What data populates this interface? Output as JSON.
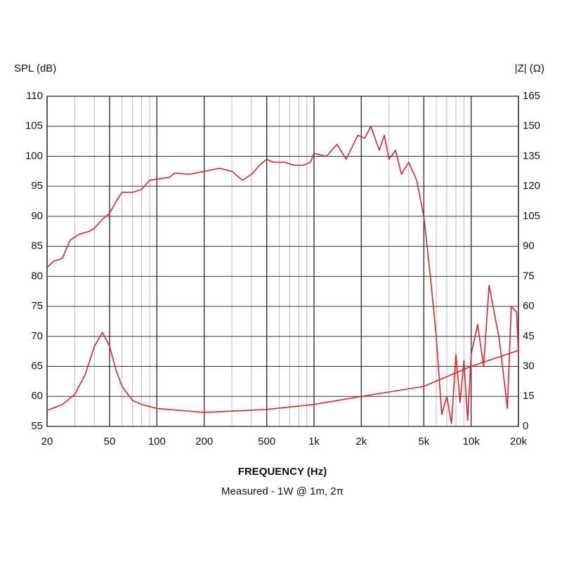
{
  "chart_data": {
    "type": "line",
    "y_label": "SPL (dB)",
    "y2_label": "|Z| (Ω)",
    "x_label": "FREQUENCY (Hz)",
    "subtitle": "Measured - 1W @ 1m, 2π",
    "log_x": true,
    "grid": true,
    "xlim": [
      20,
      20000
    ],
    "xticks": [
      20,
      50,
      100,
      200,
      500,
      {
        "value": 1000,
        "label": "1k"
      },
      {
        "value": 2000,
        "label": "2k"
      },
      {
        "value": 5000,
        "label": "5k"
      },
      {
        "value": 10000,
        "label": "10k"
      },
      {
        "value": 20000,
        "label": "20k"
      }
    ],
    "ylim": [
      55,
      110
    ],
    "yticks": [
      55,
      60,
      65,
      70,
      75,
      80,
      85,
      90,
      95,
      100,
      105,
      110
    ],
    "y2lim": [
      0,
      165
    ],
    "y2ticks": [
      0,
      15,
      30,
      45,
      60,
      75,
      90,
      105,
      120,
      135,
      150,
      165
    ],
    "series": [
      {
        "color": "#e8202a",
        "axis": "y",
        "x": [
          20,
          22,
          25,
          28,
          32,
          37,
          40,
          45,
          50,
          55,
          60,
          70,
          80,
          90,
          100,
          120,
          130,
          160,
          200,
          250,
          300,
          350,
          400,
          450,
          500,
          550,
          650,
          750,
          850,
          950,
          1000,
          1200,
          1400,
          1600,
          1900,
          2100,
          2300,
          2600,
          2800,
          3000,
          3300,
          3600,
          4000,
          4500,
          5000,
          5500,
          6000,
          6500,
          7000,
          7500,
          8000,
          8500,
          9000,
          9500,
          10000,
          11000,
          12000,
          13000,
          14000,
          15000,
          16000,
          17000,
          18000,
          19500,
          20000
        ],
        "values": [
          81.5,
          82.5,
          83,
          86,
          87,
          87.5,
          88,
          89.5,
          90.5,
          92.5,
          94,
          94,
          94.5,
          96,
          96.2,
          96.5,
          97.2,
          97,
          97.5,
          98,
          97.5,
          96,
          97,
          98.5,
          99.5,
          99,
          99,
          98.5,
          98.5,
          99,
          100.5,
          100,
          102,
          99.5,
          103.5,
          103,
          105,
          101,
          103.5,
          99.5,
          101,
          97,
          99,
          96,
          90,
          80,
          70,
          57,
          60,
          55.5,
          67,
          59,
          66,
          56,
          67,
          72,
          65,
          78.5,
          74,
          70,
          64,
          58,
          75,
          74,
          67
        ]
      },
      {
        "color": "#e8202a",
        "axis": "y2",
        "x": [
          20,
          25,
          30,
          35,
          40,
          45,
          50,
          55,
          60,
          70,
          80,
          100,
          200,
          500,
          1000,
          2000,
          5000,
          10000,
          20000
        ],
        "values": [
          8,
          11,
          16,
          26,
          40,
          47,
          40,
          28,
          20,
          13,
          11,
          9,
          7,
          8.5,
          11,
          15,
          20,
          30,
          38
        ]
      }
    ]
  }
}
